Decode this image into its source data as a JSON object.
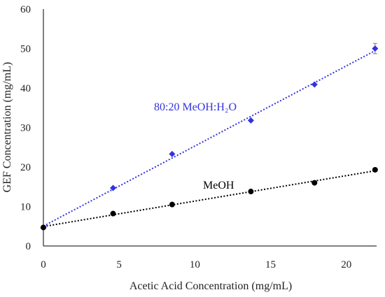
{
  "chart_data": {
    "type": "scatter",
    "xlabel": "Acetic Acid Concentration (mg/mL)",
    "ylabel": "GEF Concentration (mg/mL)",
    "xlim": [
      0,
      22
    ],
    "ylim": [
      0,
      60
    ],
    "xticks": [
      0,
      5,
      10,
      15,
      20
    ],
    "yticks": [
      0,
      10,
      20,
      30,
      40,
      50,
      60
    ],
    "grid": false,
    "series": [
      {
        "name": "80:20 MeOH:H₂O",
        "color": "#3333dd",
        "marker": "diamond",
        "trendline": "linear-dotted",
        "x": [
          0,
          4.6,
          8.5,
          13.7,
          17.9,
          21.9
        ],
        "y": [
          4.6,
          14.7,
          23.3,
          31.8,
          40.9,
          50.0
        ],
        "error": [
          0,
          0,
          0,
          0,
          0,
          1.3
        ]
      },
      {
        "name": "MeOH",
        "color": "#000000",
        "marker": "circle",
        "trendline": "linear-dotted",
        "x": [
          0,
          4.6,
          8.5,
          13.7,
          17.9,
          21.9
        ],
        "y": [
          4.7,
          8.2,
          10.5,
          13.8,
          16.0,
          19.3
        ],
        "error": [
          0,
          0,
          0,
          0,
          0,
          0
        ]
      }
    ]
  }
}
